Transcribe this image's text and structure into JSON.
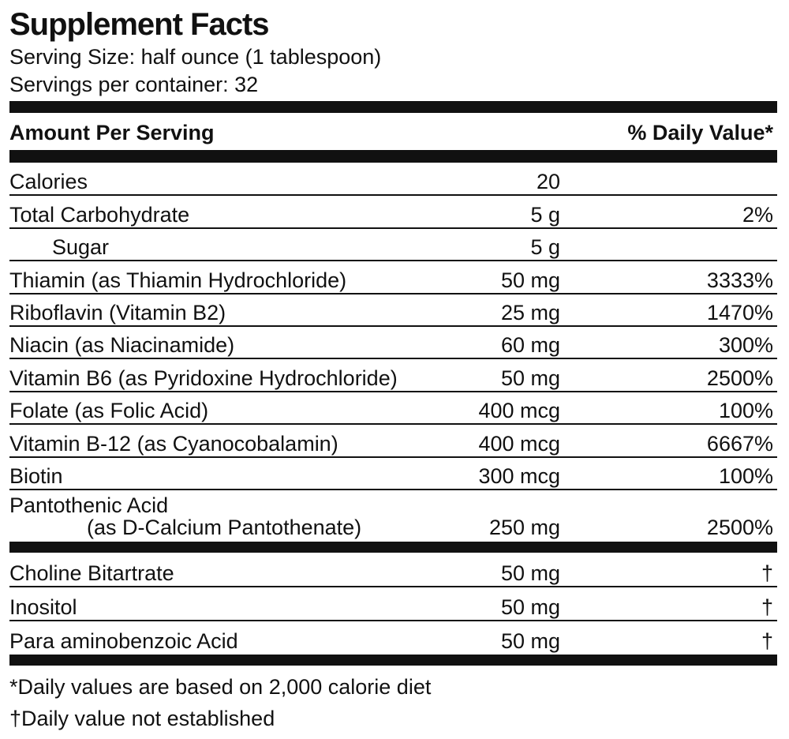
{
  "title": "Supplement Facts",
  "serving_size": "Serving Size: half ounce (1 tablespoon)",
  "servings_per_container": "Servings per container: 32",
  "header": {
    "amount": "Amount Per Serving",
    "daily_value": "% Daily Value*"
  },
  "sections": [
    {
      "rows": [
        {
          "name": "Calories",
          "amount": "20"
        },
        {
          "name": "Total Carbohydrate",
          "amount": "5 g",
          "daily_value": "2%"
        },
        {
          "name": "Sugar",
          "amount": "5 g",
          "indent": true
        },
        {
          "name": "Thiamin (as Thiamin Hydrochloride)",
          "amount": "50 mg",
          "daily_value": "3333%"
        },
        {
          "name": "Riboflavin (Vitamin B2)",
          "amount": "25 mg",
          "daily_value": "1470%"
        },
        {
          "name": "Niacin (as Niacinamide)",
          "amount": "60 mg",
          "daily_value": "300%"
        },
        {
          "name": "Vitamin B6 (as Pyridoxine Hydrochloride)",
          "amount": "50 mg",
          "daily_value": "2500%"
        },
        {
          "name": "Folate (as Folic Acid)",
          "amount": "400 mcg",
          "daily_value": "100%"
        },
        {
          "name": "Vitamin B-12 (as Cyanocobalamin)",
          "amount": "400 mcg",
          "daily_value": "6667%"
        },
        {
          "name": "Biotin",
          "amount": "300 mcg",
          "daily_value": "100%"
        },
        {
          "name": "Pantothenic Acid",
          "name_detail": "(as D-Calcium Pantothenate)",
          "amount": "250 mg",
          "daily_value": "2500%"
        }
      ]
    },
    {
      "rows": [
        {
          "name": "Choline Bitartrate",
          "amount": "50 mg",
          "daily_value": "†"
        },
        {
          "name": "Inositol",
          "amount": "50 mg",
          "daily_value": "†"
        },
        {
          "name": "Para aminobenzoic Acid",
          "amount": "50 mg",
          "daily_value": "†"
        }
      ]
    }
  ],
  "footnotes": [
    "*Daily values are based on 2,000 calorie diet",
    "†Daily value not established"
  ]
}
